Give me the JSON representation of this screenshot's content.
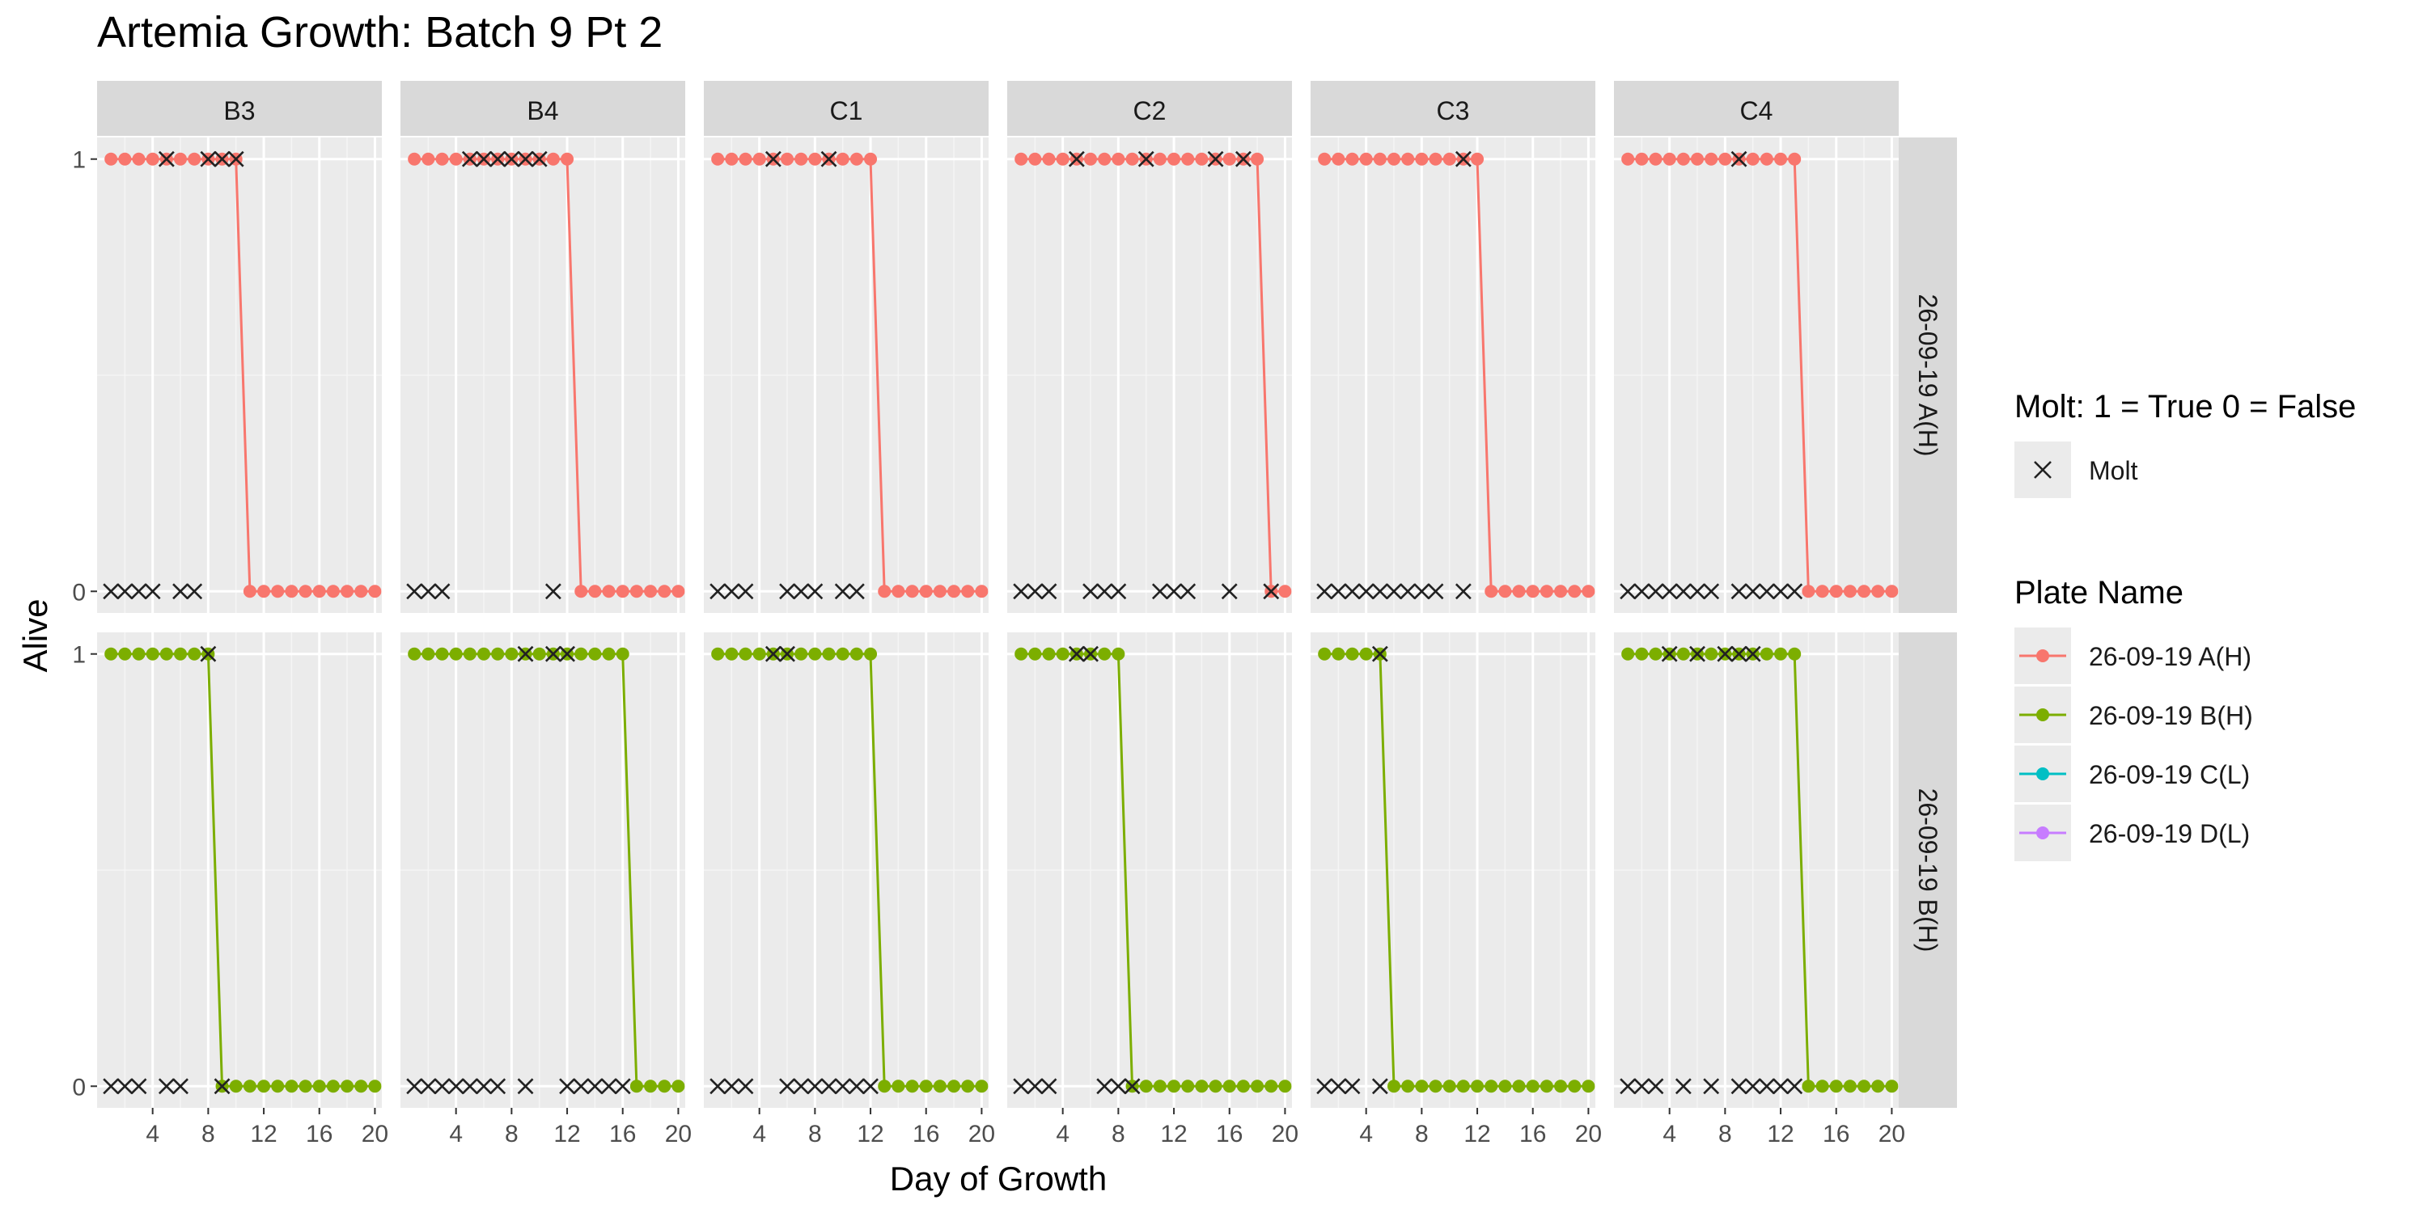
{
  "chart_data": {
    "type": "line",
    "title": "Artemia Growth: Batch 9 Pt 2",
    "xlabel": "Day of Growth",
    "ylabel": "Alive",
    "xlim": [
      0,
      20.5
    ],
    "ylim": [
      -0.05,
      1.05
    ],
    "x_ticks": [
      4,
      8,
      12,
      16,
      20
    ],
    "y_ticks": [
      0,
      1
    ],
    "columns": [
      "B3",
      "B4",
      "C1",
      "C2",
      "C3",
      "C4"
    ],
    "rows": [
      "26-09-19 A(H)",
      "26-09-19 B(H)"
    ],
    "grid": true,
    "legend_position": "right",
    "legend": {
      "molt_title": "Molt: 1 = True 0 = False",
      "molt_label": "Molt",
      "plate_title": "Plate Name",
      "plates": [
        {
          "name": "26-09-19 A(H)",
          "color": "#F8766D"
        },
        {
          "name": "26-09-19 B(H)",
          "color": "#7CAE00"
        },
        {
          "name": "26-09-19 C(L)",
          "color": "#00BFC4"
        },
        {
          "name": "26-09-19 D(L)",
          "color": "#C77CFF"
        }
      ]
    },
    "panels": [
      {
        "row": "26-09-19 A(H)",
        "col": "B3",
        "alive_last_day": 10,
        "molt_alive": [
          5,
          8,
          9,
          10
        ],
        "molt_dead": [
          1,
          2,
          3,
          4,
          6,
          7
        ]
      },
      {
        "row": "26-09-19 A(H)",
        "col": "B4",
        "alive_last_day": 12,
        "molt_alive": [
          5,
          6,
          7,
          8,
          9,
          10
        ],
        "molt_dead": [
          1,
          2,
          3,
          11
        ]
      },
      {
        "row": "26-09-19 A(H)",
        "col": "C1",
        "alive_last_day": 12,
        "molt_alive": [
          5,
          9
        ],
        "molt_dead": [
          1,
          2,
          3,
          6,
          7,
          8,
          10,
          11
        ]
      },
      {
        "row": "26-09-19 A(H)",
        "col": "C2",
        "alive_last_day": 18,
        "molt_alive": [
          5,
          10,
          15,
          17
        ],
        "molt_dead": [
          1,
          2,
          3,
          6,
          7,
          8,
          11,
          12,
          13,
          16,
          19
        ]
      },
      {
        "row": "26-09-19 A(H)",
        "col": "C3",
        "alive_last_day": 12,
        "molt_alive": [
          11
        ],
        "molt_dead": [
          1,
          2,
          3,
          4,
          5,
          6,
          7,
          8,
          9,
          11
        ]
      },
      {
        "row": "26-09-19 A(H)",
        "col": "C4",
        "alive_last_day": 13,
        "molt_alive": [
          9
        ],
        "molt_dead": [
          1,
          2,
          3,
          4,
          5,
          6,
          7,
          9,
          10,
          11,
          12,
          13
        ]
      },
      {
        "row": "26-09-19 B(H)",
        "col": "B3",
        "alive_last_day": 8,
        "molt_alive": [
          8
        ],
        "molt_dead": [
          1,
          2,
          3,
          5,
          6,
          9
        ]
      },
      {
        "row": "26-09-19 B(H)",
        "col": "B4",
        "alive_last_day": 16,
        "molt_alive": [
          9,
          11,
          12
        ],
        "molt_dead": [
          1,
          2,
          3,
          4,
          5,
          6,
          7,
          9,
          12,
          13,
          14,
          15,
          16
        ]
      },
      {
        "row": "26-09-19 B(H)",
        "col": "C1",
        "alive_last_day": 12,
        "molt_alive": [
          5,
          6
        ],
        "molt_dead": [
          1,
          2,
          3,
          6,
          7,
          8,
          9,
          10,
          11,
          12
        ]
      },
      {
        "row": "26-09-19 B(H)",
        "col": "C2",
        "alive_last_day": 8,
        "molt_alive": [
          5,
          6
        ],
        "molt_dead": [
          1,
          2,
          3,
          7,
          8,
          9
        ]
      },
      {
        "row": "26-09-19 B(H)",
        "col": "C3",
        "alive_last_day": 5,
        "molt_alive": [
          5
        ],
        "molt_dead": [
          1,
          2,
          3,
          5
        ]
      },
      {
        "row": "26-09-19 B(H)",
        "col": "C4",
        "alive_last_day": 13,
        "molt_alive": [
          4,
          6,
          8,
          9,
          10
        ],
        "molt_dead": [
          1,
          2,
          3,
          5,
          7,
          9,
          10,
          11,
          12,
          13
        ]
      }
    ]
  }
}
